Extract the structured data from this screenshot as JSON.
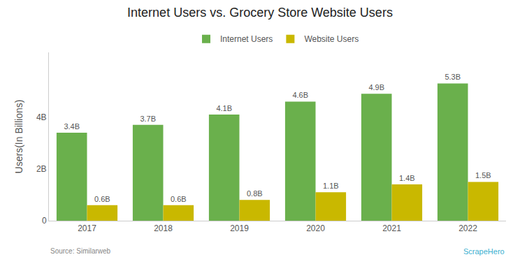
{
  "chart_data": {
    "type": "bar",
    "title": "Internet Users vs. Grocery Store Website Users",
    "categories": [
      "2017",
      "2018",
      "2019",
      "2020",
      "2021",
      "2022"
    ],
    "series": [
      {
        "name": "Internet Users",
        "color": "#6ab04c",
        "values": [
          3.4,
          3.7,
          4.1,
          4.6,
          4.9,
          5.3
        ],
        "value_labels": [
          "3.4B",
          "3.7B",
          "4.1B",
          "4.6B",
          "4.9B",
          "5.3B"
        ]
      },
      {
        "name": "Website Users",
        "color": "#c9b800",
        "values": [
          0.6,
          0.6,
          0.8,
          1.1,
          1.4,
          1.5
        ],
        "value_labels": [
          "0.6B",
          "0.6B",
          "0.8B",
          "1.1B",
          "1.4B",
          "1.5B"
        ]
      }
    ],
    "ylabel": "Users(In Billions)",
    "ylim": [
      0,
      6.5
    ],
    "yticks": [
      0,
      {
        "value": 2,
        "label": "2B"
      },
      {
        "value": 4,
        "label": "4B"
      }
    ],
    "grid": false,
    "legend": "top",
    "data_labels": true,
    "annotations": [
      "Source: Similarweb",
      "ScrapeHero"
    ]
  }
}
